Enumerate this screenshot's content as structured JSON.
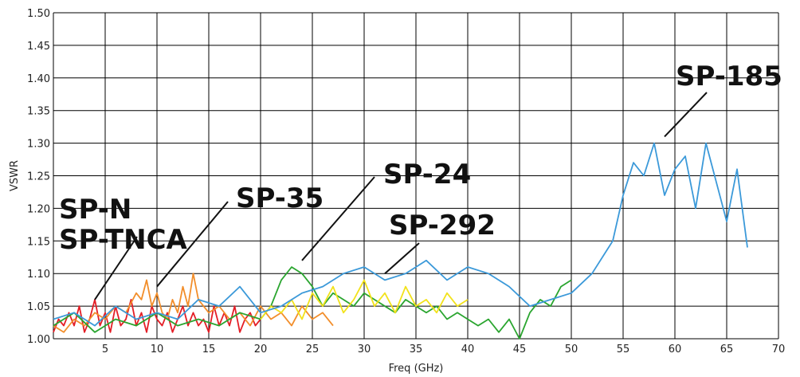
{
  "chart_data": {
    "type": "line",
    "xlabel": "Freq (GHz)",
    "ylabel": "VSWR",
    "xlim": [
      0,
      70
    ],
    "ylim": [
      1.0,
      1.5
    ],
    "x_ticks": [
      "5",
      "10",
      "15",
      "20",
      "25",
      "30",
      "35",
      "40",
      "45",
      "50",
      "55",
      "60",
      "65",
      "70"
    ],
    "y_ticks": [
      "1.00",
      "1.05",
      "1.10",
      "1.15",
      "1.20",
      "1.25",
      "1.30",
      "1.35",
      "1.40",
      "1.45",
      "1.50"
    ],
    "grid": true,
    "callouts": [
      {
        "lines": [
          "SP-N",
          "SP-TNCA"
        ],
        "points_to": [
          4,
          1.06
        ]
      },
      {
        "lines": [
          "SP-35"
        ],
        "points_to": [
          10,
          1.08
        ]
      },
      {
        "lines": [
          "SP-24"
        ],
        "points_to": [
          24,
          1.12
        ]
      },
      {
        "lines": [
          "SP-292"
        ],
        "points_to": [
          32,
          1.1
        ]
      },
      {
        "lines": [
          "SP-185"
        ],
        "points_to": [
          59,
          1.31
        ]
      }
    ],
    "series": [
      {
        "color": "#e41e26",
        "x": [
          0,
          0.5,
          1,
          1.5,
          2,
          2.5,
          3,
          3.5,
          4,
          4.5,
          5,
          5.5,
          6,
          6.5,
          7,
          7.5,
          8,
          8.5,
          9,
          9.5,
          10,
          10.5,
          11,
          11.5,
          12,
          12.5,
          13,
          13.5,
          14,
          14.5,
          15,
          15.5,
          16,
          16.5,
          17,
          17.5,
          18,
          18.5,
          19,
          19.5,
          20
        ],
        "values": [
          1.01,
          1.03,
          1.02,
          1.04,
          1.02,
          1.05,
          1.01,
          1.03,
          1.06,
          1.02,
          1.04,
          1.01,
          1.05,
          1.02,
          1.03,
          1.06,
          1.02,
          1.04,
          1.01,
          1.05,
          1.03,
          1.02,
          1.04,
          1.01,
          1.03,
          1.05,
          1.02,
          1.04,
          1.02,
          1.03,
          1.01,
          1.05,
          1.02,
          1.04,
          1.02,
          1.05,
          1.01,
          1.03,
          1.04,
          1.02,
          1.03
        ]
      },
      {
        "color": "#f28e2b",
        "x": [
          0,
          1,
          2,
          3,
          4,
          5,
          6,
          7,
          8,
          8.5,
          9,
          9.5,
          10,
          10.5,
          11,
          11.5,
          12,
          12.5,
          13,
          13.5,
          14,
          15,
          16,
          17,
          18,
          19,
          20,
          21,
          22,
          23,
          24,
          25,
          26,
          27
        ],
        "values": [
          1.02,
          1.01,
          1.03,
          1.02,
          1.04,
          1.03,
          1.05,
          1.04,
          1.07,
          1.06,
          1.09,
          1.05,
          1.07,
          1.04,
          1.03,
          1.06,
          1.04,
          1.08,
          1.05,
          1.1,
          1.06,
          1.04,
          1.05,
          1.03,
          1.04,
          1.02,
          1.05,
          1.03,
          1.04,
          1.02,
          1.05,
          1.03,
          1.04,
          1.02
        ]
      },
      {
        "color": "#2aa52f",
        "x": [
          0,
          2,
          4,
          6,
          8,
          10,
          12,
          14,
          16,
          18,
          20,
          21,
          22,
          23,
          24,
          25,
          26,
          27,
          28,
          29,
          30,
          31,
          32,
          33,
          34,
          35,
          36,
          37,
          38,
          39,
          40,
          41,
          42,
          43,
          44,
          45,
          46,
          47,
          48,
          49,
          50
        ],
        "values": [
          1.02,
          1.04,
          1.01,
          1.03,
          1.02,
          1.04,
          1.02,
          1.03,
          1.02,
          1.04,
          1.03,
          1.05,
          1.09,
          1.11,
          1.1,
          1.08,
          1.05,
          1.07,
          1.06,
          1.05,
          1.07,
          1.06,
          1.05,
          1.04,
          1.06,
          1.05,
          1.04,
          1.05,
          1.03,
          1.04,
          1.03,
          1.02,
          1.03,
          1.01,
          1.03,
          1.0,
          1.04,
          1.06,
          1.05,
          1.08,
          1.09
        ]
      },
      {
        "color": "#f2e21b",
        "x": [
          20,
          21,
          22,
          23,
          24,
          25,
          26,
          27,
          28,
          29,
          30,
          31,
          32,
          33,
          34,
          35,
          36,
          37,
          38,
          39,
          40
        ],
        "values": [
          1.03,
          1.05,
          1.04,
          1.06,
          1.03,
          1.07,
          1.05,
          1.08,
          1.04,
          1.06,
          1.09,
          1.05,
          1.07,
          1.04,
          1.08,
          1.05,
          1.06,
          1.04,
          1.07,
          1.05,
          1.06
        ]
      },
      {
        "color": "#3b99d9",
        "x": [
          0,
          2,
          4,
          6,
          8,
          10,
          12,
          14,
          16,
          18,
          20,
          22,
          24,
          26,
          28,
          30,
          32,
          34,
          36,
          38,
          40,
          42,
          44,
          46,
          48,
          50,
          52,
          54,
          55,
          56,
          57,
          58,
          59,
          60,
          61,
          62,
          63,
          64,
          65,
          66,
          67
        ],
        "values": [
          1.03,
          1.04,
          1.02,
          1.05,
          1.03,
          1.04,
          1.03,
          1.06,
          1.05,
          1.08,
          1.04,
          1.05,
          1.07,
          1.08,
          1.1,
          1.11,
          1.09,
          1.1,
          1.12,
          1.09,
          1.11,
          1.1,
          1.08,
          1.05,
          1.06,
          1.07,
          1.1,
          1.15,
          1.22,
          1.27,
          1.25,
          1.3,
          1.22,
          1.26,
          1.28,
          1.2,
          1.3,
          1.24,
          1.18,
          1.26,
          1.14
        ]
      }
    ]
  }
}
